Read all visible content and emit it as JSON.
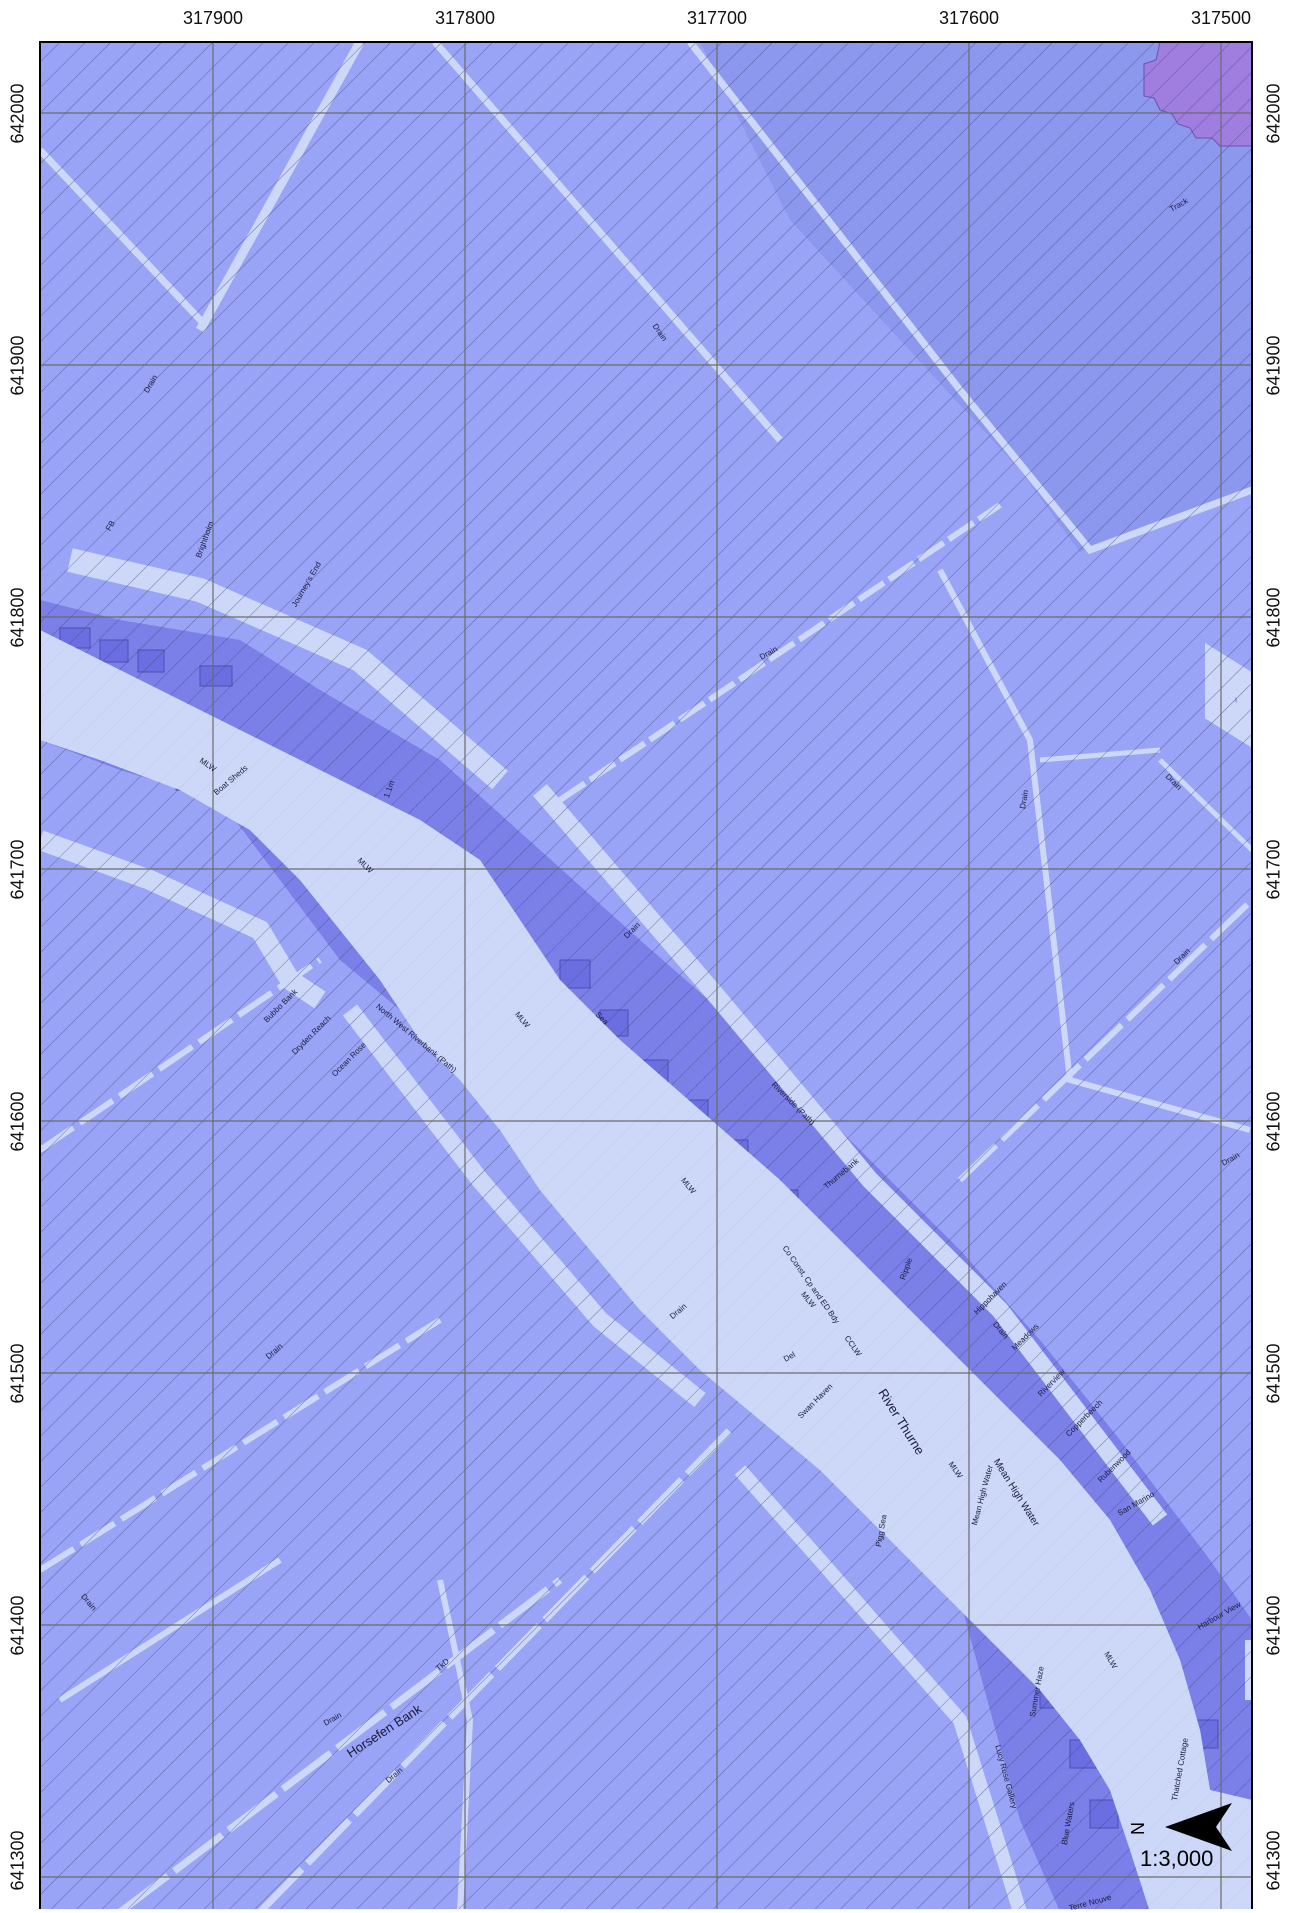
{
  "map": {
    "scale": "1:3,000",
    "north_label": "N",
    "colors": {
      "background": "#9aa4f6",
      "hatch": "#3d4578",
      "water": "#cdd8f8",
      "river_zone": "#7b7fe8",
      "building": "#6b6ee0",
      "upper_zone": "#8c97ee",
      "purple_patch": "#a07ee0",
      "grid": "#6b6b6b"
    },
    "eastings": [
      "317900",
      "317800",
      "317700",
      "317600",
      "317500"
    ],
    "northings": [
      "642000",
      "641900",
      "641800",
      "641700",
      "641600",
      "641500",
      "641400",
      "641300"
    ],
    "labels": [
      {
        "text": "River Thurne",
        "size": "big"
      },
      {
        "text": "Horsefen Bank",
        "size": "big"
      },
      {
        "text": "Mean High Water",
        "size": "med"
      },
      {
        "text": "MLW"
      },
      {
        "text": "MLW"
      },
      {
        "text": "MLW"
      },
      {
        "text": "MLW"
      },
      {
        "text": "MLW"
      },
      {
        "text": "MLW"
      },
      {
        "text": "MLW"
      },
      {
        "text": "CCLW"
      },
      {
        "text": "Drain"
      },
      {
        "text": "Drain"
      },
      {
        "text": "Drain"
      },
      {
        "text": "Drain"
      },
      {
        "text": "Drain"
      },
      {
        "text": "Drain"
      },
      {
        "text": "Drain"
      },
      {
        "text": "Drain"
      },
      {
        "text": "Drain"
      },
      {
        "text": "Drain"
      },
      {
        "text": "Drain"
      },
      {
        "text": "Drain"
      },
      {
        "text": "Drain"
      },
      {
        "text": "Track"
      },
      {
        "text": "FB"
      },
      {
        "text": "Brightholm"
      },
      {
        "text": "Journey's End"
      },
      {
        "text": "Boat Sheds"
      },
      {
        "text": "1.1m"
      },
      {
        "text": "North West Riverbank (Path)"
      },
      {
        "text": "Riverside (Path)"
      },
      {
        "text": "Bubbo Bank"
      },
      {
        "text": "Dryden Reach"
      },
      {
        "text": "Ocean Rose"
      },
      {
        "text": "Swan Haven"
      },
      {
        "text": "Pigg Sea"
      },
      {
        "text": "Thurnebank"
      },
      {
        "text": "Co Const, Cp and ED Bdy"
      },
      {
        "text": "Mean High Water"
      },
      {
        "text": "Lucy Rose Gallery"
      },
      {
        "text": "Summer Haze"
      },
      {
        "text": "Blue Waters"
      },
      {
        "text": "Terre Nouve"
      },
      {
        "text": "Thatched Cottage"
      },
      {
        "text": "Hippohaven"
      },
      {
        "text": "Meadows"
      },
      {
        "text": "Riverview"
      },
      {
        "text": "Copperbeech"
      },
      {
        "text": "Rubenwood"
      },
      {
        "text": "San Marino"
      },
      {
        "text": "Harbour View"
      },
      {
        "text": "Del"
      },
      {
        "text": "TkD"
      },
      {
        "text": "Drain"
      },
      {
        "text": "Sea"
      },
      {
        "text": "Ripple"
      }
    ]
  }
}
